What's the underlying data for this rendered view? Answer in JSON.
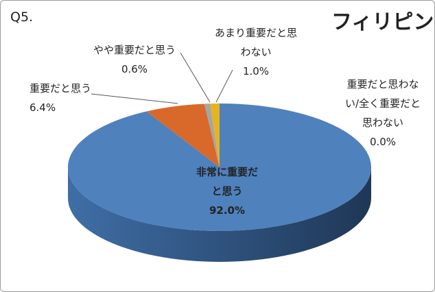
{
  "chart_data": {
    "type": "pie3d",
    "question": "Q5.",
    "title": "フィリピン",
    "categories": [
      "非常に重要だと思う",
      "重要だと思う",
      "やや重要だと思う",
      "あまり重要だと思わない",
      "重要だと思わない/全く重要だと思わない"
    ],
    "values": [
      92.0,
      6.4,
      0.6,
      1.0,
      0.0
    ],
    "value_labels": [
      "92.0%",
      "6.4%",
      "0.6%",
      "1.0%",
      "0.0%"
    ],
    "colors": [
      "#4f81bd",
      "#d9692a",
      "#a5a5a5",
      "#e6b420",
      "#7f7f7f"
    ]
  }
}
